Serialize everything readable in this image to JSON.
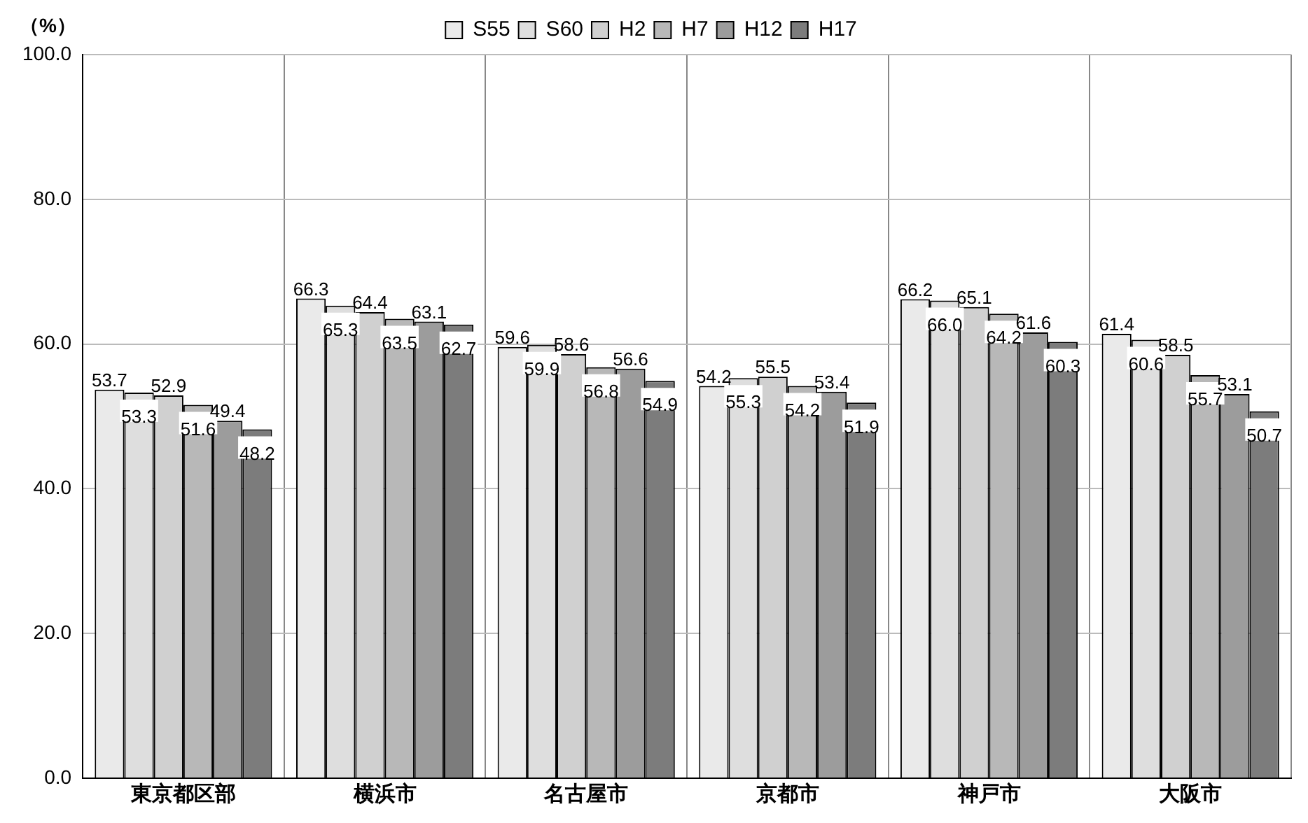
{
  "chart_data": {
    "type": "bar",
    "ylabel": "（%）",
    "categories": [
      "東京都区部",
      "横浜市",
      "名古屋市",
      "京都市",
      "神戸市",
      "大阪市"
    ],
    "series": [
      {
        "name": "S55",
        "color": "#eaeaea",
        "values": [
          53.7,
          66.3,
          59.6,
          54.2,
          66.2,
          61.4
        ],
        "value_labels": [
          "53.7",
          "66.3",
          "59.6",
          "54.2",
          "66.2",
          "61.4"
        ]
      },
      {
        "name": "S60",
        "color": "#dedede",
        "values": [
          53.3,
          65.3,
          59.9,
          55.3,
          66.0,
          60.6
        ],
        "value_labels": [
          "53.3",
          "65.3",
          "59.9",
          "55.3",
          "66.0",
          "60.6"
        ]
      },
      {
        "name": "H2",
        "color": "#d0d0d0",
        "values": [
          52.9,
          64.4,
          58.6,
          55.5,
          65.1,
          58.5
        ],
        "value_labels": [
          "52.9",
          "64.4",
          "58.6",
          "55.5",
          "65.1",
          "58.5"
        ]
      },
      {
        "name": "H7",
        "color": "#b8b8b8",
        "values": [
          51.6,
          63.5,
          56.8,
          54.2,
          64.2,
          55.7
        ],
        "value_labels": [
          "51.6",
          "63.5",
          "56.8",
          "54.2",
          "64.2",
          "55.7"
        ]
      },
      {
        "name": "H12",
        "color": "#9c9c9c",
        "values": [
          49.4,
          63.1,
          56.6,
          53.4,
          61.6,
          53.1
        ],
        "value_labels": [
          "49.4",
          "63.1",
          "56.6",
          "53.4",
          "61.6",
          "53.1"
        ]
      },
      {
        "name": "H17",
        "color": "#7c7c7c",
        "values": [
          48.2,
          62.7,
          54.9,
          51.9,
          60.3,
          50.7
        ],
        "value_labels": [
          "48.2",
          "62.7",
          "54.9",
          "51.9",
          "60.3",
          "50.7"
        ]
      }
    ],
    "ylim": [
      0,
      100
    ],
    "yticks": [
      {
        "value": 0,
        "label": "0.0"
      },
      {
        "value": 20,
        "label": "20.0"
      },
      {
        "value": 40,
        "label": "40.0"
      },
      {
        "value": 60,
        "label": "60.0"
      },
      {
        "value": 80,
        "label": "80.0"
      },
      {
        "value": 100,
        "label": "100.0"
      }
    ],
    "grid": true,
    "legend": "top"
  }
}
